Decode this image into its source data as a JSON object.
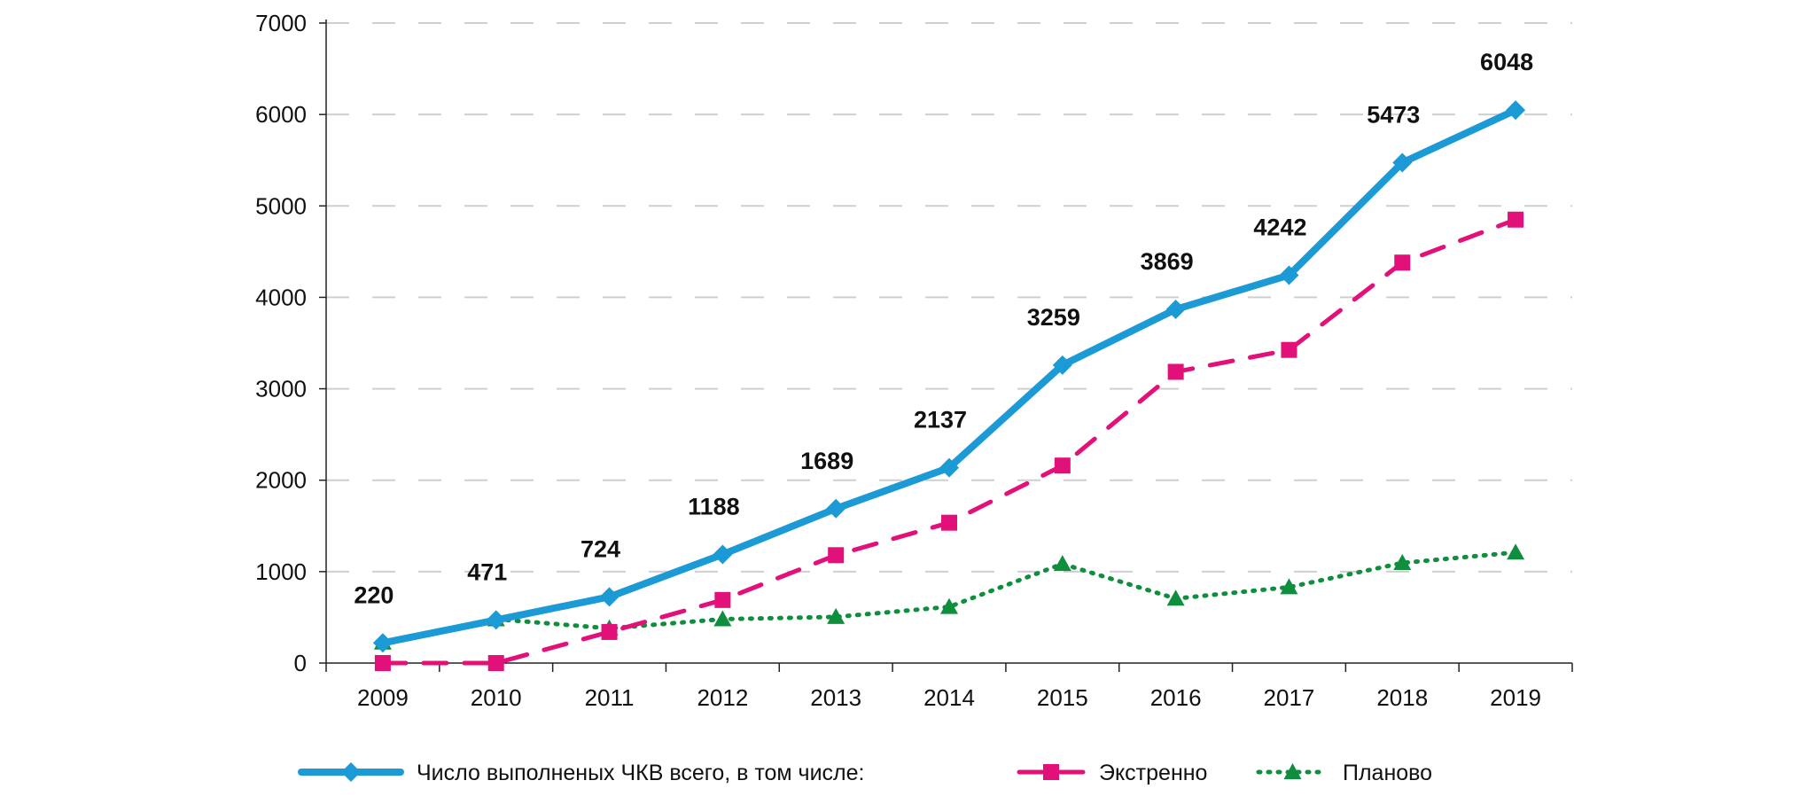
{
  "chart_data": {
    "type": "line",
    "title": "",
    "xlabel": "",
    "ylabel": "",
    "categories": [
      "2009",
      "2010",
      "2011",
      "2012",
      "2013",
      "2014",
      "2015",
      "2016",
      "2017",
      "2018",
      "2019"
    ],
    "ylim": [
      0,
      7000
    ],
    "yticks": [
      "0",
      "1000",
      "2000",
      "3000",
      "4000",
      "5000",
      "6000",
      "7000"
    ],
    "grid": "horizontal dashed",
    "legend": "bottom",
    "series": [
      {
        "name": "Число выполненых ЧКВ всего, в том числе:",
        "color": "#1b9ad6",
        "style": "solid",
        "marker": "diamond",
        "values": [
          220,
          471,
          724,
          1188,
          1689,
          2137,
          3259,
          3869,
          4242,
          5473,
          6048
        ],
        "labels": [
          "220",
          "471",
          "724",
          "1188",
          "1689",
          "2137",
          "3259",
          "3869",
          "4242",
          "5473",
          "6048"
        ]
      },
      {
        "name": "Экстренно",
        "color": "#e2117a",
        "style": "dashed",
        "marker": "square",
        "values": [
          0,
          0,
          340,
          690,
          1180,
          1535,
          2160,
          3185,
          3425,
          4380,
          4850
        ]
      },
      {
        "name": "Планово",
        "color": "#0f8f3e",
        "style": "dotted",
        "marker": "triangle",
        "values": [
          225,
          480,
          380,
          480,
          505,
          615,
          1085,
          705,
          830,
          1095,
          1210
        ]
      }
    ]
  }
}
